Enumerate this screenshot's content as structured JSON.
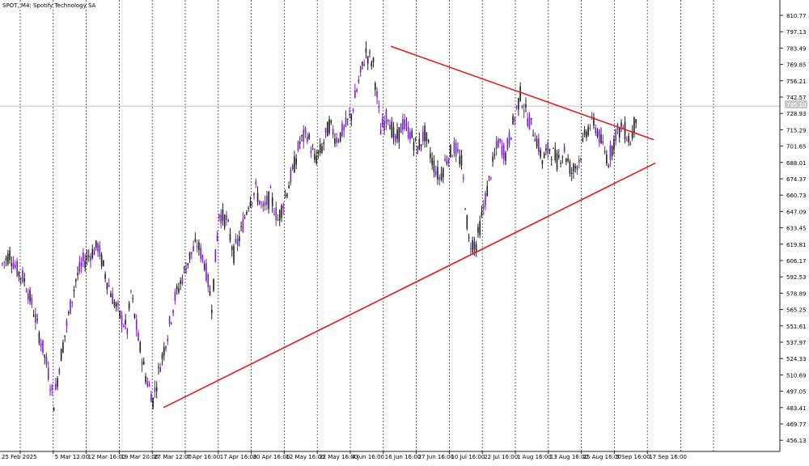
{
  "chart_title": "SPOT, M4:  Spotify Technology SA",
  "current_price_label": "735.10",
  "colors": {
    "bull": "#7b1fd6",
    "bear": "#202020",
    "trendline": "#e31b1b",
    "grid": "#404040",
    "price_line": "#c0c0c0"
  },
  "chart_data": {
    "type": "candlestick",
    "title": "SPOT, M4:  Spotify Technology SA",
    "y_ticks": [
      "810.77",
      "797.13",
      "783.49",
      "769.85",
      "756.21",
      "742.57",
      "728.93",
      "715.29",
      "701.65",
      "688.01",
      "674.37",
      "660.73",
      "647.09",
      "633.45",
      "619.81",
      "606.17",
      "592.53",
      "578.89",
      "565.25",
      "551.61",
      "537.97",
      "524.33",
      "510.69",
      "497.05",
      "483.41",
      "469.77",
      "456.13"
    ],
    "ylim": [
      446,
      822
    ],
    "x_ticks": [
      "25 Feb 2025",
      "5 Mar 12:00",
      "12 Mar 16:00",
      "19 Mar 20:00",
      "27 Mar 12:00",
      "7 Apr 16:00",
      "17 Apr 16:00",
      "30 Apr 16:00",
      "12 May 16:00",
      "22 May 16:00",
      "4 Jun 16:00",
      "16 Jun 16:00",
      "27 Jun 16:00",
      "10 Jul 16:00",
      "22 Jul 16:00",
      "1 Aug 16:00",
      "13 Aug 16:00",
      "25 Aug 16:00",
      "5 Sep 16:00",
      "17 Sep 16:00"
    ],
    "price_path": [
      [
        0,
        603
      ],
      [
        4,
        612
      ],
      [
        8,
        598
      ],
      [
        12,
        590
      ],
      [
        16,
        570
      ],
      [
        20,
        545
      ],
      [
        24,
        520
      ],
      [
        28,
        488
      ],
      [
        32,
        528
      ],
      [
        36,
        560
      ],
      [
        40,
        590
      ],
      [
        44,
        605
      ],
      [
        48,
        612
      ],
      [
        52,
        618
      ],
      [
        56,
        595
      ],
      [
        60,
        575
      ],
      [
        64,
        560
      ],
      [
        68,
        548
      ],
      [
        70,
        580
      ],
      [
        74,
        540
      ],
      [
        78,
        510
      ],
      [
        82,
        490
      ],
      [
        86,
        520
      ],
      [
        90,
        545
      ],
      [
        94,
        575
      ],
      [
        98,
        592
      ],
      [
        102,
        610
      ],
      [
        106,
        620
      ],
      [
        110,
        605
      ],
      [
        114,
        570
      ],
      [
        118,
        645
      ],
      [
        122,
        640
      ],
      [
        126,
        612
      ],
      [
        130,
        630
      ],
      [
        134,
        655
      ],
      [
        138,
        665
      ],
      [
        142,
        648
      ],
      [
        146,
        660
      ],
      [
        150,
        640
      ],
      [
        154,
        660
      ],
      [
        158,
        680
      ],
      [
        162,
        705
      ],
      [
        166,
        712
      ],
      [
        170,
        690
      ],
      [
        174,
        700
      ],
      [
        178,
        720
      ],
      [
        182,
        708
      ],
      [
        186,
        715
      ],
      [
        190,
        728
      ],
      [
        194,
        755
      ],
      [
        198,
        780
      ],
      [
        202,
        770
      ],
      [
        206,
        715
      ],
      [
        210,
        728
      ],
      [
        214,
        705
      ],
      [
        218,
        720
      ],
      [
        222,
        712
      ],
      [
        226,
        700
      ],
      [
        230,
        712
      ],
      [
        234,
        690
      ],
      [
        238,
        675
      ],
      [
        242,
        692
      ],
      [
        246,
        700
      ],
      [
        250,
        688
      ],
      [
        254,
        622
      ],
      [
        258,
        620
      ],
      [
        262,
        650
      ],
      [
        266,
        680
      ],
      [
        270,
        705
      ],
      [
        274,
        695
      ],
      [
        278,
        720
      ],
      [
        282,
        745
      ],
      [
        286,
        725
      ],
      [
        290,
        712
      ],
      [
        294,
        690
      ],
      [
        298,
        700
      ],
      [
        302,
        690
      ],
      [
        306,
        698
      ],
      [
        310,
        680
      ],
      [
        314,
        690
      ],
      [
        318,
        715
      ],
      [
        322,
        722
      ],
      [
        326,
        705
      ],
      [
        330,
        690
      ],
      [
        334,
        712
      ],
      [
        338,
        718
      ],
      [
        342,
        705
      ],
      [
        346,
        735
      ]
    ],
    "trendlines": [
      {
        "from": {
          "x": 202,
          "price": 483.4
        },
        "to": {
          "x": 810,
          "price": 687.5
        }
      },
      {
        "from": {
          "x": 483,
          "price": 785.0
        },
        "to": {
          "x": 808,
          "price": 707.0
        }
      }
    ],
    "current_price": 735.1
  }
}
